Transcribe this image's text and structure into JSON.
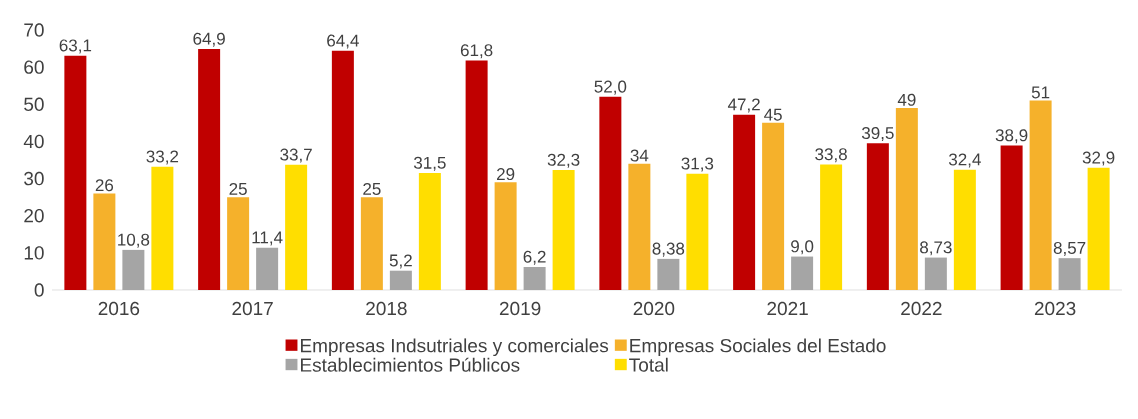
{
  "chart_data": {
    "type": "bar",
    "categories": [
      "2016",
      "2017",
      "2018",
      "2019",
      "2020",
      "2021",
      "2022",
      "2023"
    ],
    "series": [
      {
        "name": "Empresas Indsutriales y comerciales",
        "color": "#c00000",
        "values": [
          63.1,
          64.9,
          64.4,
          61.8,
          52.0,
          47.2,
          39.5,
          38.9
        ],
        "value_labels": [
          "63,1",
          "64,9",
          "64,4",
          "61,8",
          "52,0",
          "47,2",
          "39,5",
          "38,9"
        ]
      },
      {
        "name": "Empresas Sociales del Estado",
        "color": "#f5b12b",
        "values": [
          26,
          25,
          25,
          29,
          34,
          45,
          49,
          51
        ],
        "value_labels": [
          "26",
          "25",
          "25",
          "29",
          "34",
          "45",
          "49",
          "51"
        ]
      },
      {
        "name": "Establecimientos Públicos",
        "color": "#a5a5a5",
        "values": [
          10.8,
          11.4,
          5.2,
          6.2,
          8.38,
          9.0,
          8.73,
          8.57
        ],
        "value_labels": [
          "10,8",
          "11,4",
          "5,2",
          "6,2",
          "8,38",
          "9,0",
          "8,73",
          "8,57"
        ]
      },
      {
        "name": "Total",
        "color": "#ffde00",
        "values": [
          33.2,
          33.7,
          31.5,
          32.3,
          31.3,
          33.8,
          32.4,
          32.9
        ],
        "value_labels": [
          "33,2",
          "33,7",
          "31,5",
          "32,3",
          "31,3",
          "33,8",
          "32,4",
          "32,9"
        ]
      }
    ],
    "ylim": [
      0,
      70
    ],
    "yticks": [
      0,
      10,
      20,
      30,
      40,
      50,
      60,
      70
    ],
    "legend": "bottom"
  }
}
